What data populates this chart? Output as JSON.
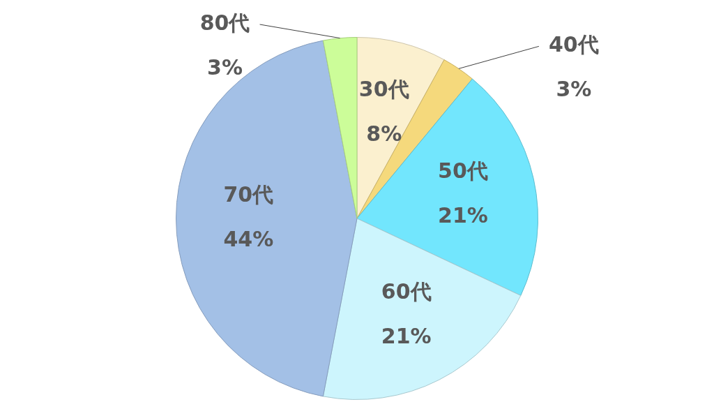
{
  "chart_data": {
    "type": "pie",
    "categories": [
      "30代",
      "40代",
      "50代",
      "60代",
      "70代",
      "80代"
    ],
    "values": [
      8,
      3,
      21,
      21,
      44,
      3
    ],
    "value_labels": [
      "8%",
      "3%",
      "21%",
      "21%",
      "44%",
      "3%"
    ],
    "colors": [
      "#fbf0cf",
      "#f5d97c",
      "#72e6fd",
      "#cdf5fd",
      "#a3c0e6",
      "#ccfd99"
    ],
    "legend": false
  }
}
